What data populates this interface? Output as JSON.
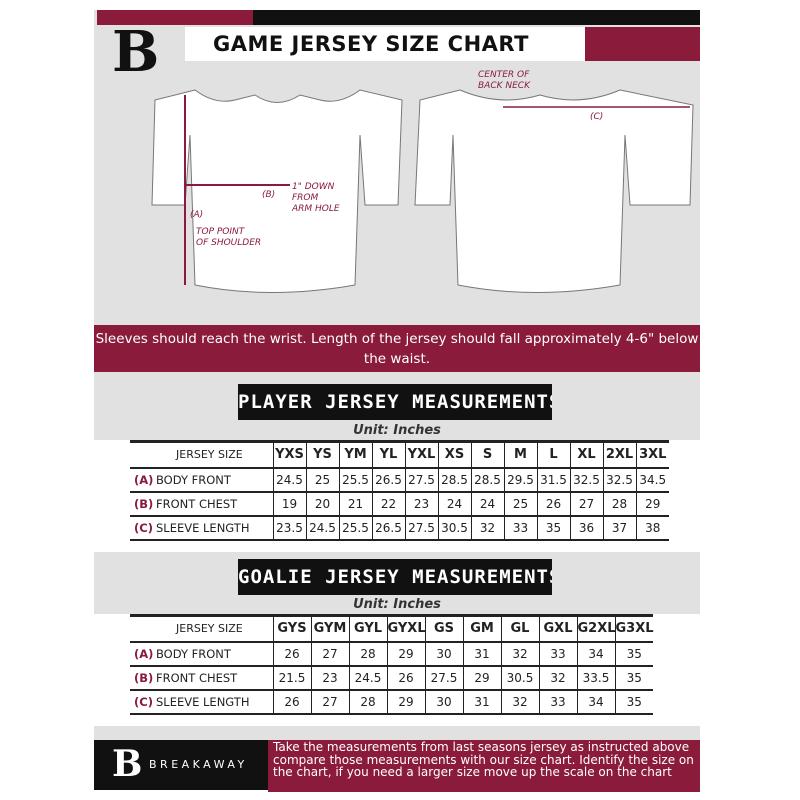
{
  "header": {
    "title": "GAME JERSEY SIZE CHART",
    "logo_letter": "B"
  },
  "diagram": {
    "front_a": "(A)",
    "front_a_note": "TOP POINT\nOF SHOULDER",
    "front_b": "(B)",
    "front_b_note": "1\" DOWN\nFROM\nARM HOLE",
    "back_note": "CENTER OF\nBACK NECK",
    "back_c": "(C)"
  },
  "banner": "Sleeves should reach the wrist. Length of the jersey should fall approximately 4-6\" below the waist.",
  "player": {
    "title": "PLAYER JERSEY MEASUREMENTS",
    "unit": "Unit: Inches",
    "size_label": "JERSEY SIZE",
    "sizes": [
      "YXS",
      "YS",
      "YM",
      "YL",
      "YXL",
      "XS",
      "S",
      "M",
      "L",
      "XL",
      "2XL",
      "3XL"
    ],
    "rows": [
      {
        "letter": "(A)",
        "label": "BODY FRONT",
        "values": [
          "24.5",
          "25",
          "25.5",
          "26.5",
          "27.5",
          "28.5",
          "28.5",
          "29.5",
          "31.5",
          "32.5",
          "32.5",
          "34.5"
        ]
      },
      {
        "letter": "(B)",
        "label": "FRONT CHEST",
        "values": [
          "19",
          "20",
          "21",
          "22",
          "23",
          "24",
          "24",
          "25",
          "26",
          "27",
          "28",
          "29"
        ]
      },
      {
        "letter": "(C)",
        "label": "SLEEVE LENGTH",
        "values": [
          "23.5",
          "24.5",
          "25.5",
          "26.5",
          "27.5",
          "30.5",
          "32",
          "33",
          "35",
          "36",
          "37",
          "38"
        ]
      }
    ]
  },
  "goalie": {
    "title": "GOALIE JERSEY MEASUREMENTS",
    "unit": "Unit: Inches",
    "size_label": "JERSEY SIZE",
    "sizes": [
      "GYS",
      "GYM",
      "GYL",
      "GYXL",
      "GS",
      "GM",
      "GL",
      "GXL",
      "G2XL",
      "G3XL"
    ],
    "rows": [
      {
        "letter": "(A)",
        "label": "BODY FRONT",
        "values": [
          "26",
          "27",
          "28",
          "29",
          "30",
          "31",
          "32",
          "33",
          "34",
          "35"
        ]
      },
      {
        "letter": "(B)",
        "label": "FRONT CHEST",
        "values": [
          "21.5",
          "23",
          "24.5",
          "26",
          "27.5",
          "29",
          "30.5",
          "32",
          "33.5",
          "35"
        ]
      },
      {
        "letter": "(C)",
        "label": "SLEEVE LENGTH",
        "values": [
          "26",
          "27",
          "28",
          "29",
          "30",
          "31",
          "32",
          "33",
          "34",
          "35"
        ]
      }
    ]
  },
  "footer": {
    "brand": "BREAKAWAY",
    "text": "Take the measurements from last seasons jersey as instructed above compare those measurements  with our size chart. Identify the size on the chart, if you need a larger size move up the scale on the chart"
  },
  "colors": {
    "accent": "#8a1b3b",
    "background": "#e1e1e1",
    "dark": "#111111"
  }
}
